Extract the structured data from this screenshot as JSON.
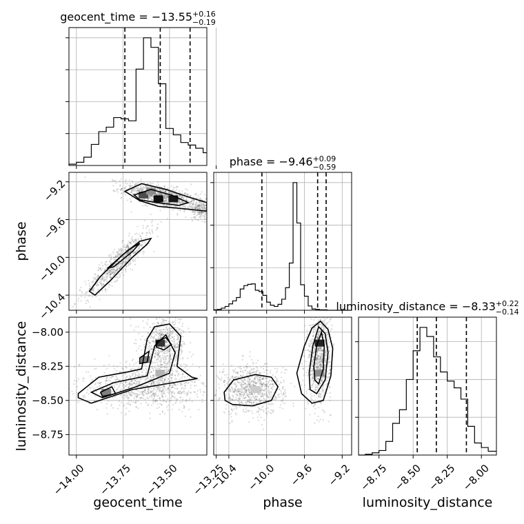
{
  "chart_data": {
    "type": "corner",
    "parameters": [
      "geocent_time",
      "phase",
      "luminosity_distance"
    ],
    "ranges": {
      "geocent_time": [
        -14.04,
        -13.3
      ],
      "phase": [
        -10.56,
        -9.1
      ],
      "luminosity_distance": [
        -8.9,
        -7.89
      ]
    },
    "ticks": {
      "geocent_time": [
        -14.0,
        -13.75,
        -13.5,
        -13.25
      ],
      "phase": [
        -10.4,
        -10.0,
        -9.6,
        -9.2
      ],
      "luminosity_distance": [
        -8.75,
        -8.5,
        -8.25,
        -8.0
      ]
    },
    "tick_labels": {
      "geocent_time": [
        "−14.00",
        "−13.75",
        "−13.50",
        "−13.25"
      ],
      "phase": [
        "−10.4",
        "−10.0",
        "−9.6",
        "−9.2"
      ],
      "luminosity_distance": [
        "−8.75",
        "−8.50",
        "−8.25",
        "−8.00"
      ]
    },
    "titles": {
      "geocent_time": {
        "label": "geocent_time",
        "median": "−13.55",
        "plus": "+0.16",
        "minus": "−0.19"
      },
      "phase": {
        "label": "phase",
        "median": "−9.46",
        "plus": "+0.09",
        "minus": "−0.59"
      },
      "luminosity_distance": {
        "label": "luminosity_distance",
        "median": "−8.33",
        "plus": "+0.22",
        "minus": "−0.14"
      }
    },
    "axis_labels": {
      "x": [
        "geocent_time",
        "phase",
        "luminosity_distance"
      ],
      "y": [
        "phase",
        "luminosity_distance"
      ]
    },
    "quantiles": {
      "geocent_time": [
        -13.74,
        -13.55,
        -13.39
      ],
      "phase": [
        -10.05,
        -9.46,
        -9.37
      ],
      "luminosity_distance": [
        -8.47,
        -8.33,
        -8.11
      ]
    },
    "histograms": {
      "geocent_time": {
        "edges": [
          -14.04,
          -14.0,
          -13.96,
          -13.92,
          -13.88,
          -13.84,
          -13.8,
          -13.76,
          -13.72,
          -13.68,
          -13.64,
          -13.6,
          -13.56,
          -13.52,
          -13.48,
          -13.44,
          -13.4,
          -13.36,
          -13.32,
          -13.3
        ],
        "counts": [
          2,
          5,
          13,
          33,
          53,
          60,
          75,
          73,
          70,
          151,
          200,
          185,
          128,
          58,
          48,
          36,
          32,
          27,
          20
        ]
      },
      "phase": {
        "edges": [
          -10.56,
          -10.52,
          -10.48,
          -10.44,
          -10.4,
          -10.36,
          -10.32,
          -10.28,
          -10.24,
          -10.2,
          -10.16,
          -10.12,
          -10.08,
          -10.04,
          -10.0,
          -9.96,
          -9.92,
          -9.88,
          -9.84,
          -9.8,
          -9.76,
          -9.72,
          -9.68,
          -9.64,
          -9.6,
          -9.56,
          -9.52,
          -9.48,
          -9.44,
          -9.4,
          -9.36,
          -9.32,
          -9.28,
          -9.24,
          -9.2,
          -9.16,
          -9.12,
          -9.1
        ],
        "counts": [
          1,
          2,
          5,
          9,
          15,
          22,
          30,
          50,
          58,
          61,
          62,
          47,
          44,
          35,
          19,
          12,
          9,
          14,
          26,
          53,
          111,
          300,
          205,
          60,
          33,
          10,
          3,
          2,
          1,
          1,
          0,
          0,
          0,
          0,
          0,
          0,
          0
        ]
      },
      "luminosity_distance": {
        "edges": [
          -8.9,
          -8.85,
          -8.8,
          -8.75,
          -8.7,
          -8.65,
          -8.6,
          -8.55,
          -8.5,
          -8.45,
          -8.4,
          -8.35,
          -8.3,
          -8.25,
          -8.2,
          -8.15,
          -8.1,
          -8.05,
          -8.0,
          -7.95,
          -7.89
        ],
        "counts": [
          0,
          1,
          3,
          6,
          18,
          42,
          60,
          100,
          138,
          169,
          157,
          130,
          110,
          98,
          89,
          74,
          38,
          16,
          10,
          5
        ]
      }
    },
    "contours": {
      "phase_vs_geocent_time": [
        [
          [
            -13.9,
            -10.4
          ],
          [
            -13.82,
            -10.25
          ],
          [
            -13.7,
            -10.0
          ],
          [
            -13.62,
            -9.86
          ],
          [
            -13.6,
            -9.8
          ],
          [
            -13.66,
            -9.83
          ],
          [
            -13.75,
            -9.97
          ],
          [
            -13.87,
            -10.2
          ],
          [
            -13.93,
            -10.36
          ]
        ],
        [
          [
            -13.74,
            -9.3
          ],
          [
            -13.65,
            -9.22
          ],
          [
            -13.52,
            -9.28
          ],
          [
            -13.4,
            -9.36
          ],
          [
            -13.3,
            -9.42
          ],
          [
            -13.3,
            -9.51
          ],
          [
            -13.45,
            -9.48
          ],
          [
            -13.56,
            -9.46
          ],
          [
            -13.66,
            -9.4
          ]
        ],
        [
          [
            -13.69,
            -9.34
          ],
          [
            -13.6,
            -9.28
          ],
          [
            -13.49,
            -9.34
          ],
          [
            -13.4,
            -9.42
          ],
          [
            -13.45,
            -9.45
          ],
          [
            -13.57,
            -9.42
          ],
          [
            -13.66,
            -9.39
          ]
        ],
        [
          [
            -13.83,
            -10.11
          ],
          [
            -13.72,
            -9.92
          ],
          [
            -13.66,
            -9.85
          ],
          [
            -13.7,
            -9.94
          ],
          [
            -13.8,
            -10.1
          ]
        ]
      ],
      "luminosity_distance_vs_geocent_time": [
        [
          [
            -13.99,
            -8.45
          ],
          [
            -13.88,
            -8.33
          ],
          [
            -13.72,
            -8.29
          ],
          [
            -13.65,
            -8.27
          ],
          [
            -13.62,
            -8.05
          ],
          [
            -13.58,
            -7.96
          ],
          [
            -13.5,
            -7.94
          ],
          [
            -13.44,
            -8.03
          ],
          [
            -13.46,
            -8.25
          ],
          [
            -13.38,
            -8.33
          ],
          [
            -13.35,
            -8.34
          ],
          [
            -13.48,
            -8.37
          ],
          [
            -13.7,
            -8.42
          ],
          [
            -13.92,
            -8.52
          ],
          [
            -13.99,
            -8.48
          ]
        ],
        [
          [
            -13.92,
            -8.44
          ],
          [
            -13.8,
            -8.37
          ],
          [
            -13.62,
            -8.32
          ],
          [
            -13.58,
            -8.1
          ],
          [
            -13.52,
            -8.02
          ],
          [
            -13.47,
            -8.15
          ],
          [
            -13.5,
            -8.3
          ],
          [
            -13.68,
            -8.4
          ],
          [
            -13.86,
            -8.48
          ]
        ],
        [
          [
            -13.57,
            -8.07
          ],
          [
            -13.52,
            -8.04
          ],
          [
            -13.49,
            -8.09
          ],
          [
            -13.53,
            -8.13
          ],
          [
            -13.57,
            -8.11
          ]
        ],
        [
          [
            -13.66,
            -8.19
          ],
          [
            -13.61,
            -8.14
          ],
          [
            -13.62,
            -8.22
          ],
          [
            -13.66,
            -8.23
          ]
        ],
        [
          [
            -13.87,
            -8.44
          ],
          [
            -13.81,
            -8.4
          ],
          [
            -13.79,
            -8.45
          ],
          [
            -13.86,
            -8.47
          ]
        ]
      ],
      "luminosity_distance_vs_phase": [
        [
          [
            -10.45,
            -8.44
          ],
          [
            -10.35,
            -8.35
          ],
          [
            -10.12,
            -8.31
          ],
          [
            -9.95,
            -8.33
          ],
          [
            -9.88,
            -8.4
          ],
          [
            -9.95,
            -8.5
          ],
          [
            -10.15,
            -8.54
          ],
          [
            -10.36,
            -8.53
          ],
          [
            -10.44,
            -8.5
          ]
        ],
        [
          [
            -9.68,
            -8.3
          ],
          [
            -9.6,
            -8.1
          ],
          [
            -9.52,
            -7.97
          ],
          [
            -9.43,
            -7.92
          ],
          [
            -9.35,
            -7.98
          ],
          [
            -9.3,
            -8.12
          ],
          [
            -9.32,
            -8.32
          ],
          [
            -9.4,
            -8.5
          ],
          [
            -9.52,
            -8.52
          ],
          [
            -9.63,
            -8.45
          ]
        ],
        [
          [
            -9.55,
            -8.3
          ],
          [
            -9.51,
            -8.1
          ],
          [
            -9.45,
            -7.96
          ],
          [
            -9.38,
            -8.01
          ],
          [
            -9.35,
            -8.15
          ],
          [
            -9.38,
            -8.35
          ],
          [
            -9.47,
            -8.45
          ],
          [
            -9.54,
            -8.42
          ]
        ],
        [
          [
            -9.5,
            -8.25
          ],
          [
            -9.47,
            -8.1
          ],
          [
            -9.42,
            -8.0
          ],
          [
            -9.39,
            -8.1
          ],
          [
            -9.4,
            -8.27
          ],
          [
            -9.45,
            -8.38
          ],
          [
            -9.49,
            -8.35
          ]
        ]
      ]
    },
    "density_blocks": {
      "phase_vs_geocent_time": [
        [
          -13.64,
          -9.34,
          0.7
        ],
        [
          -13.56,
          -9.38,
          0.95
        ],
        [
          -13.48,
          -9.38,
          0.9
        ],
        [
          -13.6,
          -9.3,
          0.45
        ]
      ],
      "luminosity_distance_vs_geocent_time": [
        [
          -13.55,
          -8.08,
          0.8
        ],
        [
          -13.63,
          -8.2,
          0.5
        ],
        [
          -13.84,
          -8.44,
          0.5
        ],
        [
          -13.55,
          -8.3,
          0.3
        ]
      ],
      "luminosity_distance_vs_phase": [
        [
          -9.44,
          -8.08,
          0.85
        ],
        [
          -9.44,
          -8.3,
          0.45
        ],
        [
          -10.12,
          -8.42,
          0.2
        ]
      ]
    },
    "sample_clusters": {
      "phase_vs_geocent_time": [
        {
          "n": 900,
          "cx": -13.55,
          "cy": -9.35,
          "sx": 0.1,
          "sy": 0.07,
          "rho": -0.6
        },
        {
          "n": 700,
          "cx": -13.77,
          "cy": -10.05,
          "sx": 0.09,
          "sy": 0.18,
          "rho": 0.9
        },
        {
          "n": 250,
          "cx": -13.33,
          "cy": -9.48,
          "sx": 0.03,
          "sy": 0.06,
          "rho": 0.0
        }
      ],
      "luminosity_distance_vs_geocent_time": [
        {
          "n": 900,
          "cx": -13.62,
          "cy": -8.4,
          "sx": 0.18,
          "sy": 0.08,
          "rho": -0.1
        },
        {
          "n": 700,
          "cx": -13.53,
          "cy": -8.1,
          "sx": 0.06,
          "sy": 0.12,
          "rho": 0.0
        }
      ],
      "luminosity_distance_vs_phase": [
        {
          "n": 800,
          "cx": -10.15,
          "cy": -8.42,
          "sx": 0.17,
          "sy": 0.09,
          "rho": 0.0
        },
        {
          "n": 900,
          "cx": -9.44,
          "cy": -8.18,
          "sx": 0.06,
          "sy": 0.17,
          "rho": 0.1
        }
      ]
    }
  }
}
